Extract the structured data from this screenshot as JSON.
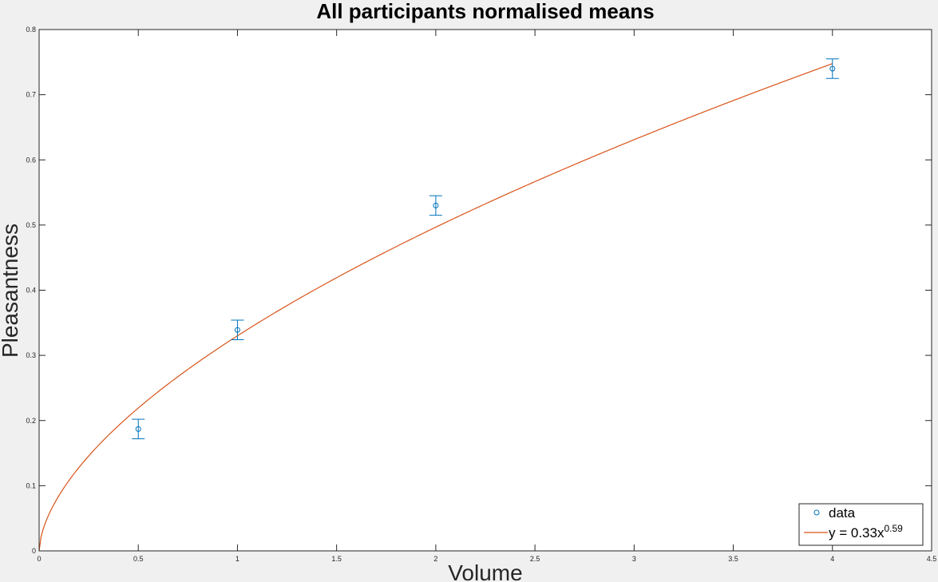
{
  "chart_data": {
    "type": "scatter",
    "title": "All participants normalised means",
    "xlabel": "Volume",
    "ylabel": "Pleasantness",
    "xlim": [
      0,
      4.5
    ],
    "ylim": [
      0,
      0.8
    ],
    "x_ticks": [
      "0",
      "0.5",
      "1",
      "1.5",
      "2",
      "2.5",
      "3",
      "3.5",
      "4",
      "4.5"
    ],
    "y_ticks": [
      "0",
      "0.1",
      "0.2",
      "0.3",
      "0.4",
      "0.5",
      "0.6",
      "0.7",
      "0.8"
    ],
    "grid": false,
    "legend_position": "bottom-right",
    "series": [
      {
        "name": "data",
        "kind": "scatter-errorbar",
        "color": "#0072BD",
        "x": [
          0.5,
          1,
          2,
          4
        ],
        "y": [
          0.187,
          0.339,
          0.53,
          0.74
        ],
        "error": [
          0.015,
          0.015,
          0.015,
          0.015
        ]
      },
      {
        "name_prefix": "y = 0.33x",
        "name_exponent": "0.59",
        "kind": "line",
        "color": "#D95319",
        "coefficient": 0.33,
        "exponent": 0.59
      }
    ]
  }
}
